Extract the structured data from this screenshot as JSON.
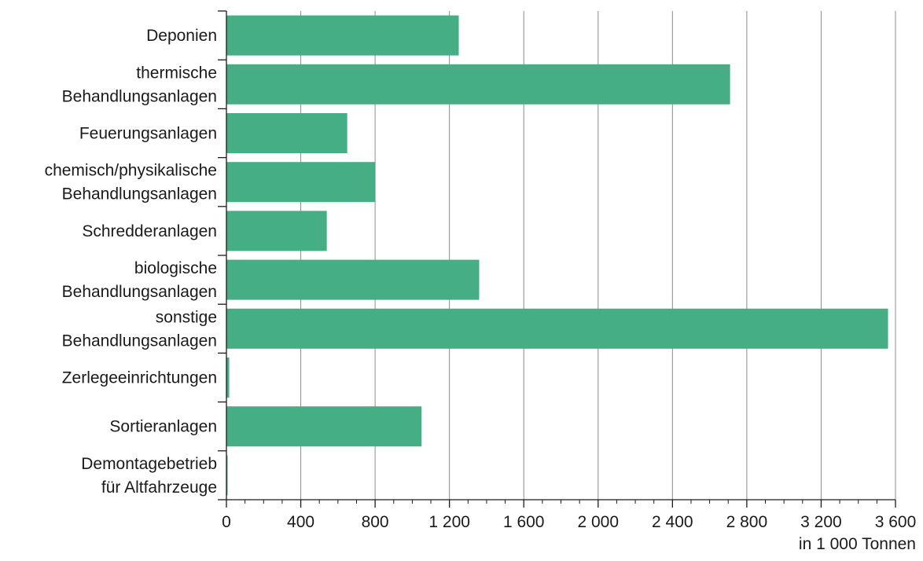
{
  "chart_data": {
    "type": "bar",
    "orientation": "horizontal",
    "categories": [
      [
        "Deponien"
      ],
      [
        "thermische",
        "Behandlungsanlagen"
      ],
      [
        "Feuerungsanlagen"
      ],
      [
        "chemisch/physikalische",
        "Behandlungsanlagen"
      ],
      [
        "Schredderanlagen"
      ],
      [
        "biologische",
        "Behandlungsanlagen"
      ],
      [
        "sonstige",
        "Behandlungsanlagen"
      ],
      [
        "Zerlegeeinrichtungen"
      ],
      [
        "Sortieranlagen"
      ],
      [
        "Demontagebetrieb",
        "für Altfahrzeuge"
      ]
    ],
    "values": [
      1250,
      2710,
      650,
      800,
      540,
      1360,
      3560,
      15,
      1050,
      5
    ],
    "xlim": [
      0,
      3600
    ],
    "xticks": [
      0,
      400,
      800,
      1200,
      1600,
      2000,
      2400,
      2800,
      3200,
      3600
    ],
    "xtick_labels": [
      "0",
      "400",
      "800",
      "1 200",
      "1 600",
      "2 000",
      "2 400",
      "2 800",
      "3 200",
      "3 600"
    ],
    "xlabel": "in 1 000 Tonnen",
    "grid": "vertical",
    "bar_color": "#45ae84"
  }
}
